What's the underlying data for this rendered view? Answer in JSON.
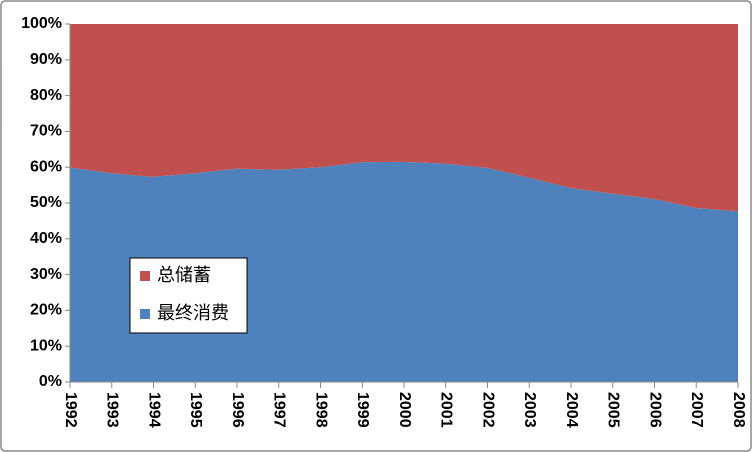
{
  "chart_data": {
    "type": "stacked-area",
    "x": [
      1992,
      1993,
      1994,
      1995,
      1996,
      1997,
      1998,
      1999,
      2000,
      2001,
      2002,
      2003,
      2004,
      2005,
      2006,
      2007,
      2008
    ],
    "xlim": [
      1992,
      2008
    ],
    "series": [
      {
        "name": "最终消费",
        "color": "#4f81bd",
        "values": [
          59.9,
          58.3,
          57.3,
          58.3,
          59.6,
          59.3,
          60.0,
          61.4,
          61.5,
          61.0,
          59.8,
          57.1,
          54.2,
          52.6,
          51.1,
          48.6,
          47.7
        ]
      },
      {
        "name": "总储蓄",
        "color": "#c0504d",
        "values": [
          40.1,
          41.7,
          42.7,
          41.7,
          40.4,
          40.7,
          40.0,
          38.6,
          38.5,
          39.0,
          40.2,
          42.9,
          45.8,
          47.4,
          48.9,
          51.4,
          52.3
        ]
      }
    ],
    "ylim": [
      0,
      100
    ],
    "yticks": [
      {
        "value": 0,
        "label": "0%"
      },
      {
        "value": 10,
        "label": "10%"
      },
      {
        "value": 20,
        "label": "20%"
      },
      {
        "value": 30,
        "label": "30%"
      },
      {
        "value": 40,
        "label": "40%"
      },
      {
        "value": 50,
        "label": "50%"
      },
      {
        "value": 60,
        "label": "60%"
      },
      {
        "value": 70,
        "label": "70%"
      },
      {
        "value": 80,
        "label": "80%"
      },
      {
        "value": 90,
        "label": "90%"
      },
      {
        "value": 100,
        "label": "100%"
      }
    ],
    "grid": false,
    "legend": "left"
  }
}
